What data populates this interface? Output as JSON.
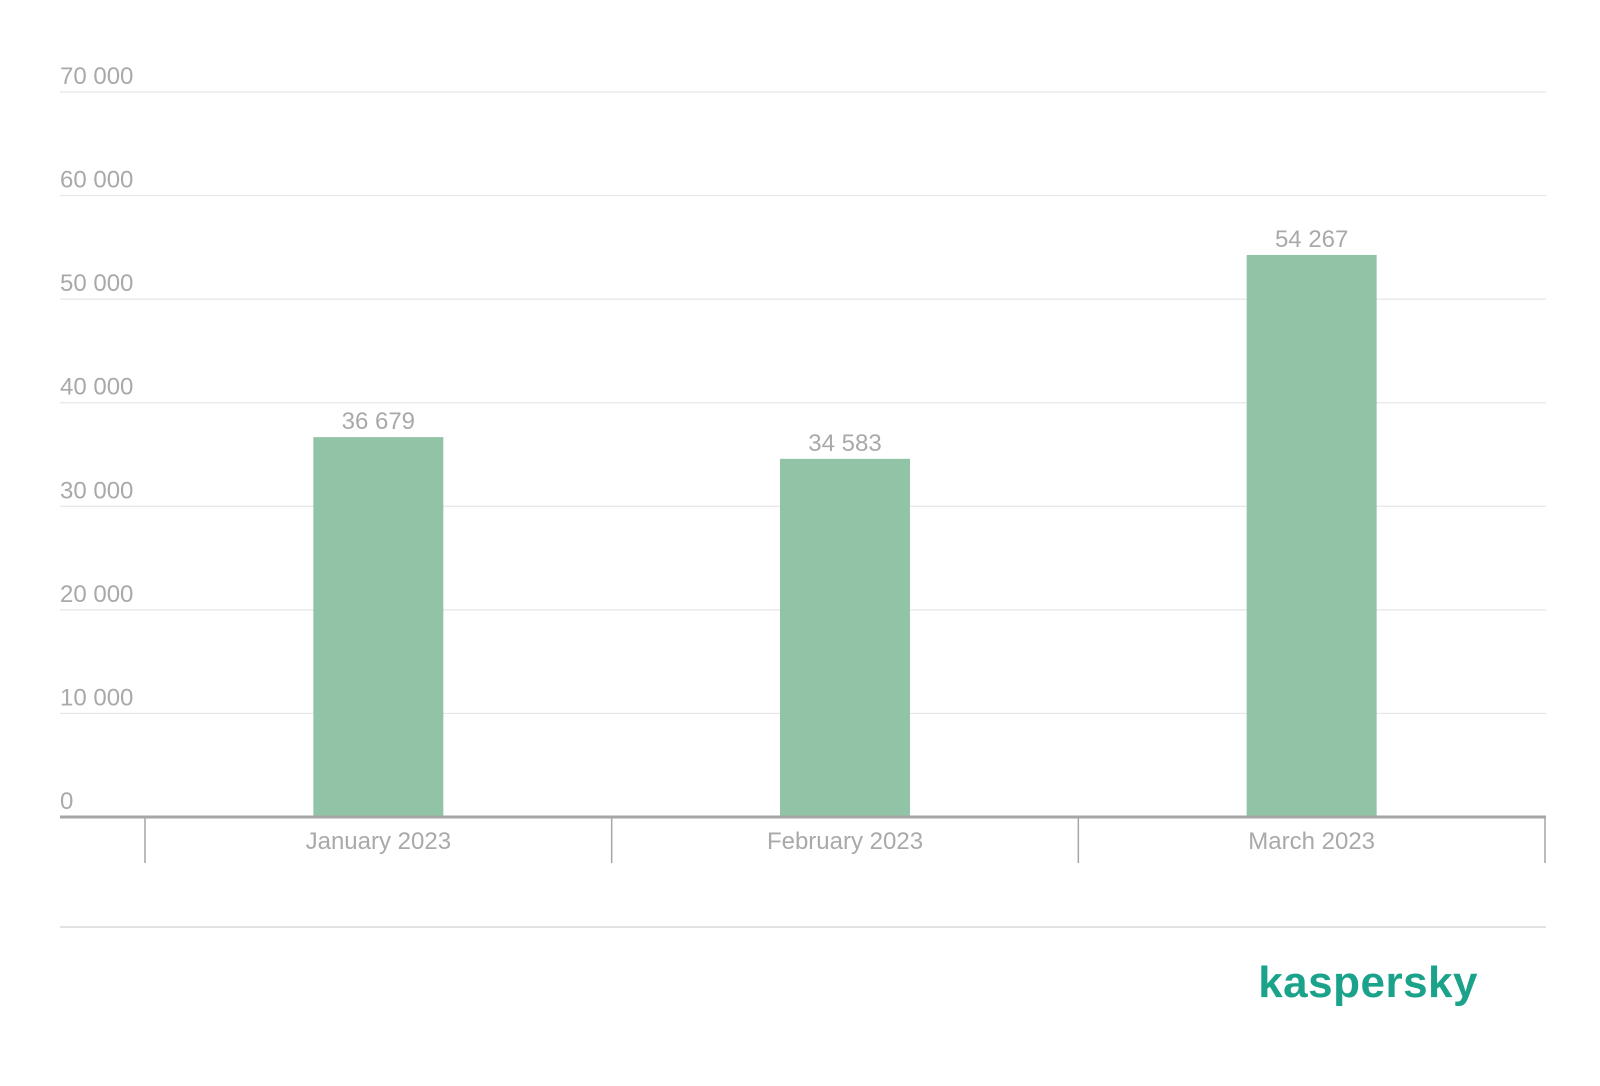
{
  "chart_data": {
    "type": "bar",
    "categories": [
      "January 2023",
      "February 2023",
      "March 2023"
    ],
    "values": [
      36679,
      34583,
      54267
    ],
    "value_labels": [
      "36 679",
      "34 583",
      "54 267"
    ],
    "yticks": [
      0,
      10000,
      20000,
      30000,
      40000,
      50000,
      60000,
      70000
    ],
    "ytick_labels": [
      "0",
      "10 000",
      "20 000",
      "30 000",
      "40 000",
      "50 000",
      "60 000",
      "70 000"
    ],
    "ylim": [
      0,
      70000
    ],
    "grid": true,
    "legend": false,
    "bar_color": "#91c4a7"
  },
  "branding": {
    "logo_text": "kaspersky",
    "logo_color": "#1aa38a"
  }
}
